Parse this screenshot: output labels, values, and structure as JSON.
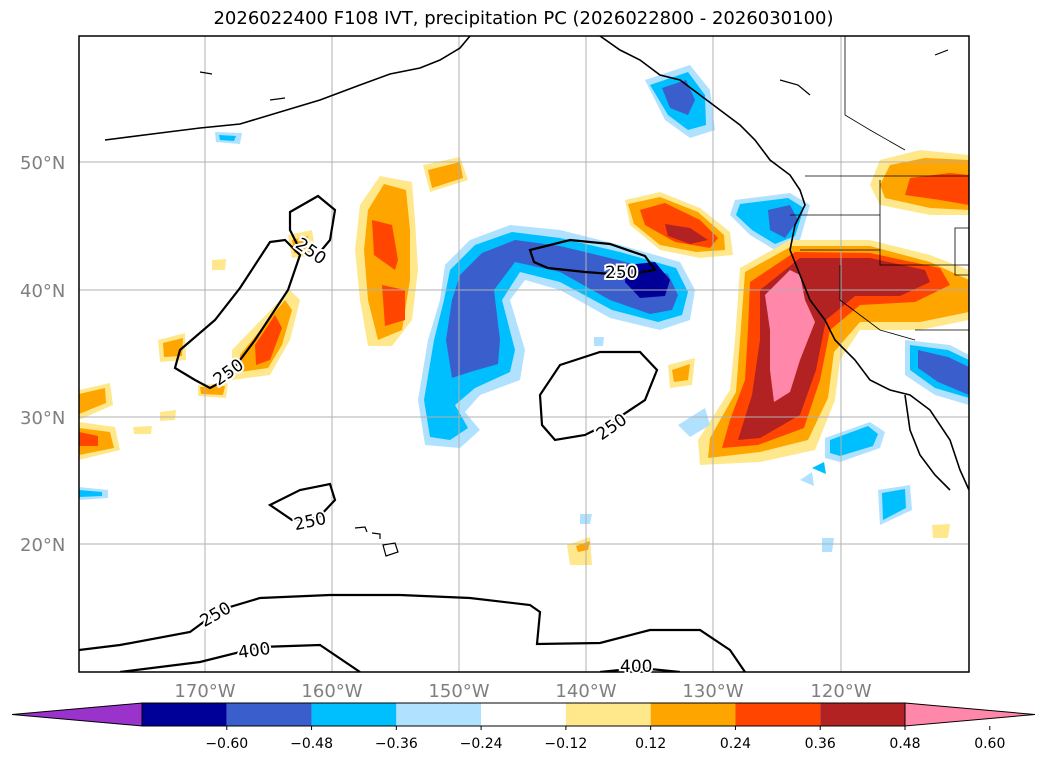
{
  "title": "2026022400 F108 IVT, precipitation PC (2026022800 - 2026030100)",
  "lat_labels": [
    "50°N",
    "40°N",
    "30°N",
    "20°N"
  ],
  "lon_labels": [
    "170°W",
    "160°W",
    "150°W",
    "140°W",
    "130°W",
    "120°W"
  ],
  "contour_labels": [
    "250",
    "250",
    "250",
    "250",
    "250",
    "250",
    "400",
    "400"
  ],
  "colorbar": {
    "ticks": [
      "−0.60",
      "−0.48",
      "−0.36",
      "−0.24",
      "−0.12",
      "0.12",
      "0.24",
      "0.36",
      "0.48",
      "0.60"
    ],
    "colors": [
      "#9933cc",
      "#000099",
      "#3a5fcd",
      "#00bfff",
      "#b0e2ff",
      "#ffffff",
      "#ffe88c",
      "#ffa500",
      "#ff4500",
      "#b22222",
      "#ff88aa"
    ]
  }
}
